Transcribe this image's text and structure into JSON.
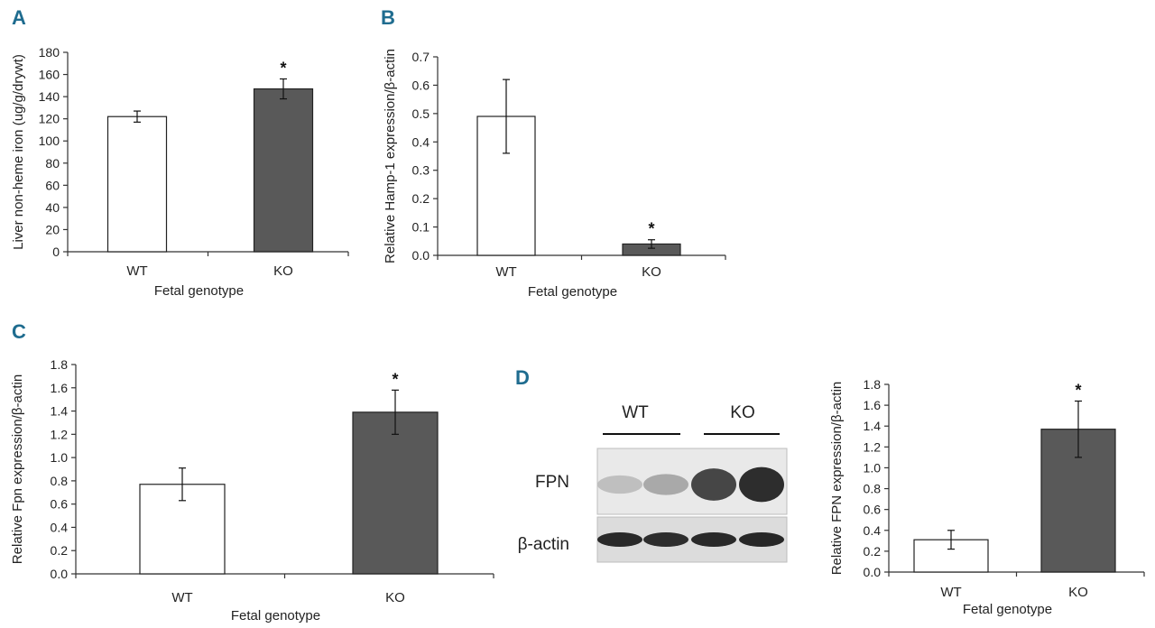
{
  "colors": {
    "panel_letter": "#1f6c8f",
    "wt_bar": "#ffffff",
    "ko_bar": "#595959",
    "axis": "#333333"
  },
  "chart_data": [
    {
      "panel": "A",
      "type": "bar",
      "categories": [
        "WT",
        "KO"
      ],
      "values": [
        122,
        147
      ],
      "errors": [
        5,
        9
      ],
      "significance": [
        "",
        "*"
      ],
      "xlabel": "Fetal genotype",
      "ylabel": "Liver non-heme iron (ug/g/drywt)",
      "ylim": [
        0,
        180
      ],
      "yticks": [
        0,
        20,
        40,
        60,
        80,
        100,
        120,
        140,
        160,
        180
      ]
    },
    {
      "panel": "B",
      "type": "bar",
      "categories": [
        "WT",
        "KO"
      ],
      "values": [
        0.49,
        0.04
      ],
      "errors": [
        0.13,
        0.015
      ],
      "significance": [
        "",
        "*"
      ],
      "xlabel": "Fetal genotype",
      "ylabel": "Relative Hamp-1 expression/β-actin",
      "ylim": [
        0,
        0.7
      ],
      "yticks": [
        "0.0",
        "0.1",
        "0.2",
        "0.3",
        "0.4",
        "0.5",
        "0.6",
        "0.7"
      ]
    },
    {
      "panel": "C",
      "type": "bar",
      "categories": [
        "WT",
        "KO"
      ],
      "values": [
        0.77,
        1.39
      ],
      "errors": [
        0.14,
        0.19
      ],
      "significance": [
        "",
        "*"
      ],
      "xlabel": "Fetal genotype",
      "ylabel": "Relative Fpn expression/β-actin",
      "ylim": [
        0,
        1.8
      ],
      "yticks": [
        "0.0",
        "0.2",
        "0.4",
        "0.6",
        "0.8",
        "1.0",
        "1.2",
        "1.4",
        "1.6",
        "1.8"
      ]
    },
    {
      "panel": "D",
      "type": "bar",
      "categories": [
        "WT",
        "KO"
      ],
      "values": [
        0.31,
        1.37
      ],
      "errors": [
        0.09,
        0.27
      ],
      "significance": [
        "",
        "*"
      ],
      "xlabel": "Fetal genotype",
      "ylabel": "Relative FPN expression/β-actin",
      "ylim": [
        0,
        1.8
      ],
      "yticks": [
        "0.0",
        "0.2",
        "0.4",
        "0.6",
        "0.8",
        "1.0",
        "1.2",
        "1.4",
        "1.6",
        "1.8"
      ]
    }
  ],
  "blot": {
    "groups": [
      "WT",
      "KO"
    ],
    "rows": [
      "FPN",
      "β-actin"
    ],
    "fpn_band_intensity": [
      0.18,
      0.3,
      0.82,
      0.95
    ],
    "actin_band_intensity": [
      0.92,
      0.9,
      0.92,
      0.93
    ]
  }
}
